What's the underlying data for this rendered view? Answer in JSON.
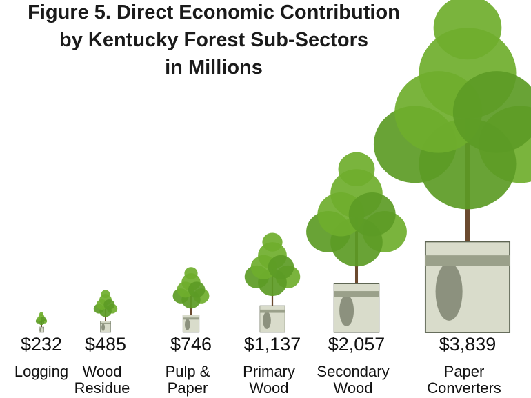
{
  "chart_data": {
    "type": "pictograph",
    "title": [
      "Figure 5. Direct Economic Contribution",
      "by Kentucky Forest Sub-Sectors",
      "in Millions"
    ],
    "categories": [
      "Logging",
      "Wood Residue",
      "Pulp & Paper",
      "Primary Wood",
      "Secondary Wood",
      "Paper Converters"
    ],
    "values": [
      232,
      485,
      746,
      1137,
      2057,
      3839
    ],
    "value_labels": [
      "$232",
      "$485",
      "$746",
      "$1,137",
      "$2,057",
      "$3,839"
    ],
    "color": "#6fae2c"
  }
}
